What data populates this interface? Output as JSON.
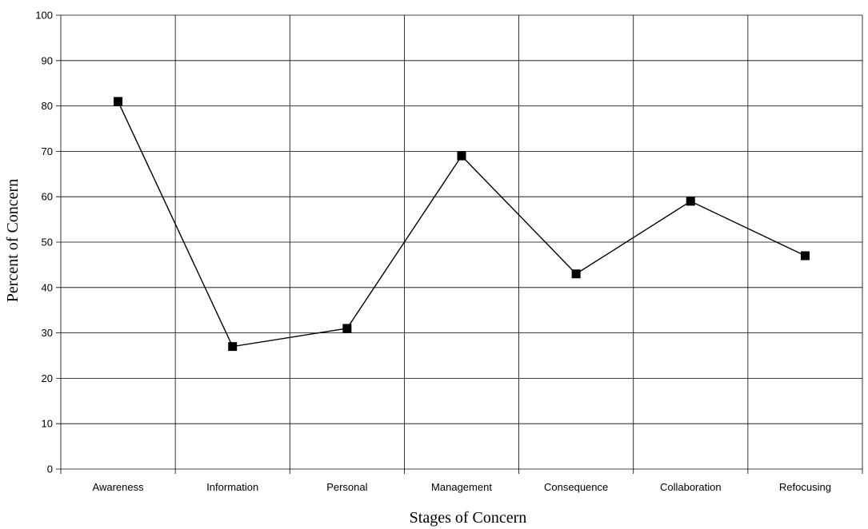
{
  "chart_data": {
    "type": "line",
    "title": "",
    "xlabel": "Stages of Concern",
    "ylabel": "Percent of Concern",
    "categories": [
      "Awareness",
      "Information",
      "Personal",
      "Management",
      "Consequence",
      "Collaboration",
      "Refocusing"
    ],
    "series": [
      {
        "values": [
          81,
          27,
          31,
          69,
          43,
          59,
          47
        ]
      }
    ],
    "ylim": [
      0,
      100
    ],
    "yticks": [
      0,
      10,
      20,
      30,
      40,
      50,
      60,
      70,
      80,
      90,
      100
    ],
    "grid": true,
    "legend": "none",
    "marker": "square",
    "colors": {
      "line": "#000000",
      "marker": "#000000",
      "grid": "#000000"
    }
  }
}
